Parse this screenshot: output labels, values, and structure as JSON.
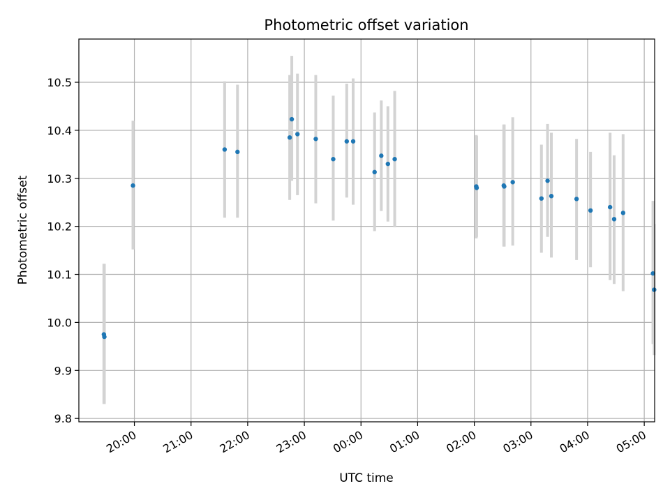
{
  "chart_data": {
    "type": "scatter",
    "title": "Photometric offset variation",
    "xlabel": "UTC time",
    "ylabel": "Photometric offset",
    "x_tick_labels": [
      "20:00",
      "21:00",
      "22:00",
      "23:00",
      "00:00",
      "01:00",
      "02:00",
      "03:00",
      "04:00",
      "05:00"
    ],
    "y_tick_labels": [
      "9.8",
      "9.9",
      "10.0",
      "10.1",
      "10.2",
      "10.3",
      "10.4",
      "10.5"
    ],
    "x_tick_values": [
      0,
      60,
      120,
      180,
      240,
      300,
      360,
      420,
      480,
      540
    ],
    "y_tick_values": [
      9.8,
      9.9,
      10.0,
      10.1,
      10.2,
      10.3,
      10.4,
      10.5
    ],
    "xlim": [
      -58.8,
      551
    ],
    "ylim": [
      9.793,
      10.59
    ],
    "grid": true,
    "marker_color": "#1f77b4",
    "errorbar_color": "#d3d3d3",
    "series": [
      {
        "x": [
          -32.3,
          -31.8,
          -1.5,
          95.6,
          109.2,
          164.5,
          166.7,
          172.7,
          192.1,
          210.6,
          224.9,
          231.7,
          254.4,
          261.5,
          268.5,
          275.7,
          362.1,
          362.5,
          391.2,
          391.7,
          400.7,
          431.1,
          437.6,
          441.6,
          468.3,
          483.1,
          503.8,
          508.1,
          517.6,
          549.2,
          550.5
        ],
        "y": [
          9.975,
          9.97,
          10.285,
          10.36,
          10.355,
          10.385,
          10.423,
          10.392,
          10.382,
          10.34,
          10.377,
          10.377,
          10.313,
          10.347,
          10.33,
          10.34,
          10.283,
          10.28,
          10.285,
          10.283,
          10.292,
          10.258,
          10.295,
          10.263,
          10.257,
          10.233,
          10.24,
          10.215,
          10.228,
          10.102,
          10.068
        ],
        "err_low": [
          9.83,
          9.83,
          10.152,
          10.218,
          10.218,
          10.255,
          10.295,
          10.265,
          10.248,
          10.212,
          10.26,
          10.245,
          10.19,
          10.232,
          10.21,
          10.198,
          10.175,
          10.178,
          10.158,
          10.158,
          10.16,
          10.145,
          10.178,
          10.135,
          10.13,
          10.115,
          10.088,
          10.08,
          10.065,
          9.955,
          9.932
        ],
        "err_high": [
          10.122,
          10.122,
          10.42,
          10.502,
          10.495,
          10.515,
          10.555,
          10.518,
          10.515,
          10.472,
          10.497,
          10.508,
          10.437,
          10.462,
          10.45,
          10.482,
          10.39,
          10.388,
          10.412,
          10.412,
          10.427,
          10.37,
          10.413,
          10.395,
          10.382,
          10.355,
          10.395,
          10.348,
          10.392,
          10.253,
          10.205
        ]
      }
    ]
  }
}
